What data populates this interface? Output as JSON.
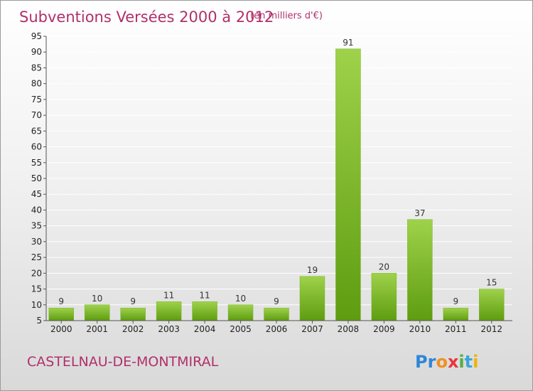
{
  "header": {
    "title": "Subventions Versées 2000 à 2012",
    "unit": "(en milliers d'€)"
  },
  "footer": {
    "commune": "CASTELNAU-DE-MONTMIRAL",
    "brand": {
      "letters": [
        "P",
        "r",
        "o",
        "x",
        "i",
        "t",
        "i"
      ],
      "colors": [
        "#2e86d6",
        "#2e86d6",
        "#f19020",
        "#e8353a",
        "#52b044",
        "#3aa6dd",
        "#f0b400"
      ]
    }
  },
  "colors": {
    "bar_top": "#9ed24a",
    "bar_bottom": "#5e9c10",
    "accent": "#b0306a"
  },
  "chart_data": {
    "type": "bar",
    "categories": [
      "2000",
      "2001",
      "2002",
      "2003",
      "2004",
      "2005",
      "2006",
      "2007",
      "2008",
      "2009",
      "2010",
      "2011",
      "2012"
    ],
    "values": [
      9,
      10,
      9,
      11,
      11,
      10,
      9,
      19,
      91,
      20,
      37,
      9,
      15
    ],
    "ylim": [
      5,
      95
    ],
    "yticks": [
      5,
      10,
      15,
      20,
      25,
      30,
      35,
      40,
      45,
      50,
      55,
      60,
      65,
      70,
      75,
      80,
      85,
      90,
      95
    ],
    "grid": true
  }
}
